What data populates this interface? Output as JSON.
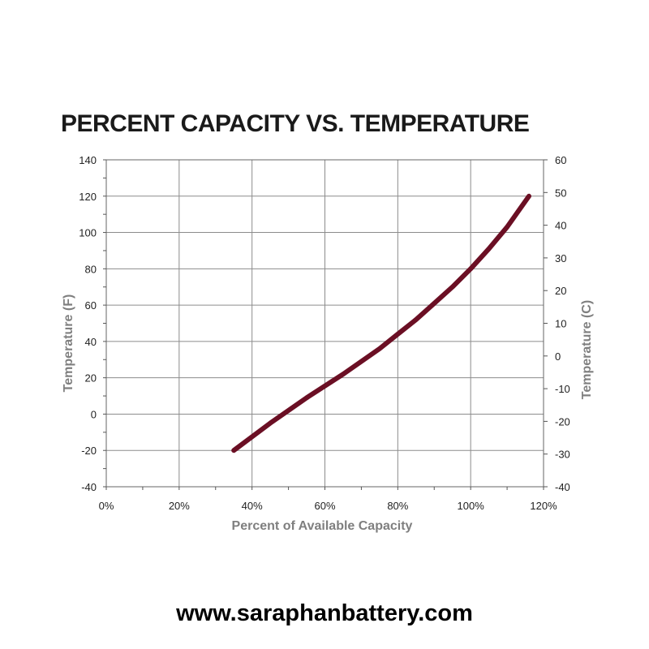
{
  "title": "PERCENT CAPACITY VS. TEMPERATURE",
  "footer": "www.saraphanbattery.com",
  "chart_data": {
    "type": "line",
    "title": "PERCENT CAPACITY VS. TEMPERATURE",
    "xlabel": "Percent of Available Capacity",
    "ylabel": "Temperature (F)",
    "y2label": "Temperature  (C)",
    "xlim": [
      0,
      120
    ],
    "ylim": [
      -40,
      140
    ],
    "y2lim": [
      -40,
      60
    ],
    "x_ticks": [
      "0%",
      "20%",
      "40%",
      "60%",
      "80%",
      "100%",
      "120%"
    ],
    "y_ticks": [
      "-40",
      "-20",
      "0",
      "20",
      "40",
      "60",
      "80",
      "100",
      "120",
      "140"
    ],
    "y2_ticks": [
      "-40",
      "-30",
      "-20",
      "-10",
      "0",
      "10",
      "20",
      "30",
      "40",
      "50",
      "60"
    ],
    "grid": true,
    "line_color": "#6b0f24",
    "series": [
      {
        "x": [
          35,
          45,
          55,
          65,
          75,
          80,
          85,
          90,
          95,
          100,
          105,
          110,
          116
        ],
        "y": [
          -20,
          -5,
          9,
          22,
          36,
          44,
          52,
          61,
          70,
          80,
          91,
          103,
          120
        ]
      }
    ]
  }
}
